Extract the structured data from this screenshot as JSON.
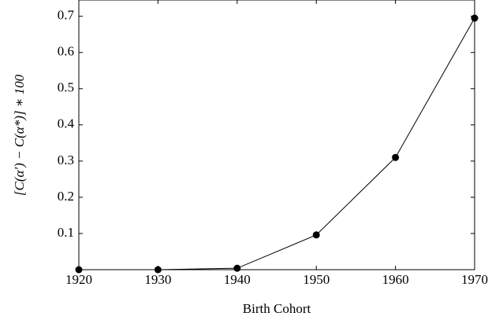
{
  "chart_data": {
    "type": "line",
    "x": [
      1920,
      1930,
      1940,
      1950,
      1960,
      1970
    ],
    "values": [
      0,
      0,
      0.004,
      0.096,
      0.31,
      0.695
    ],
    "color": "#000000",
    "xlabel": "Birth Cohort",
    "ylabel": "[C(α′) − C(α*)] ∗ 100",
    "xlim": [
      1920,
      1970
    ],
    "xticks": [
      1920,
      1930,
      1940,
      1950,
      1960,
      1970
    ],
    "ylim": [
      0,
      0.745
    ],
    "yticks": [
      0.1,
      0.2,
      0.3,
      0.4,
      0.5,
      0.6,
      0.7
    ],
    "grid": false
  }
}
